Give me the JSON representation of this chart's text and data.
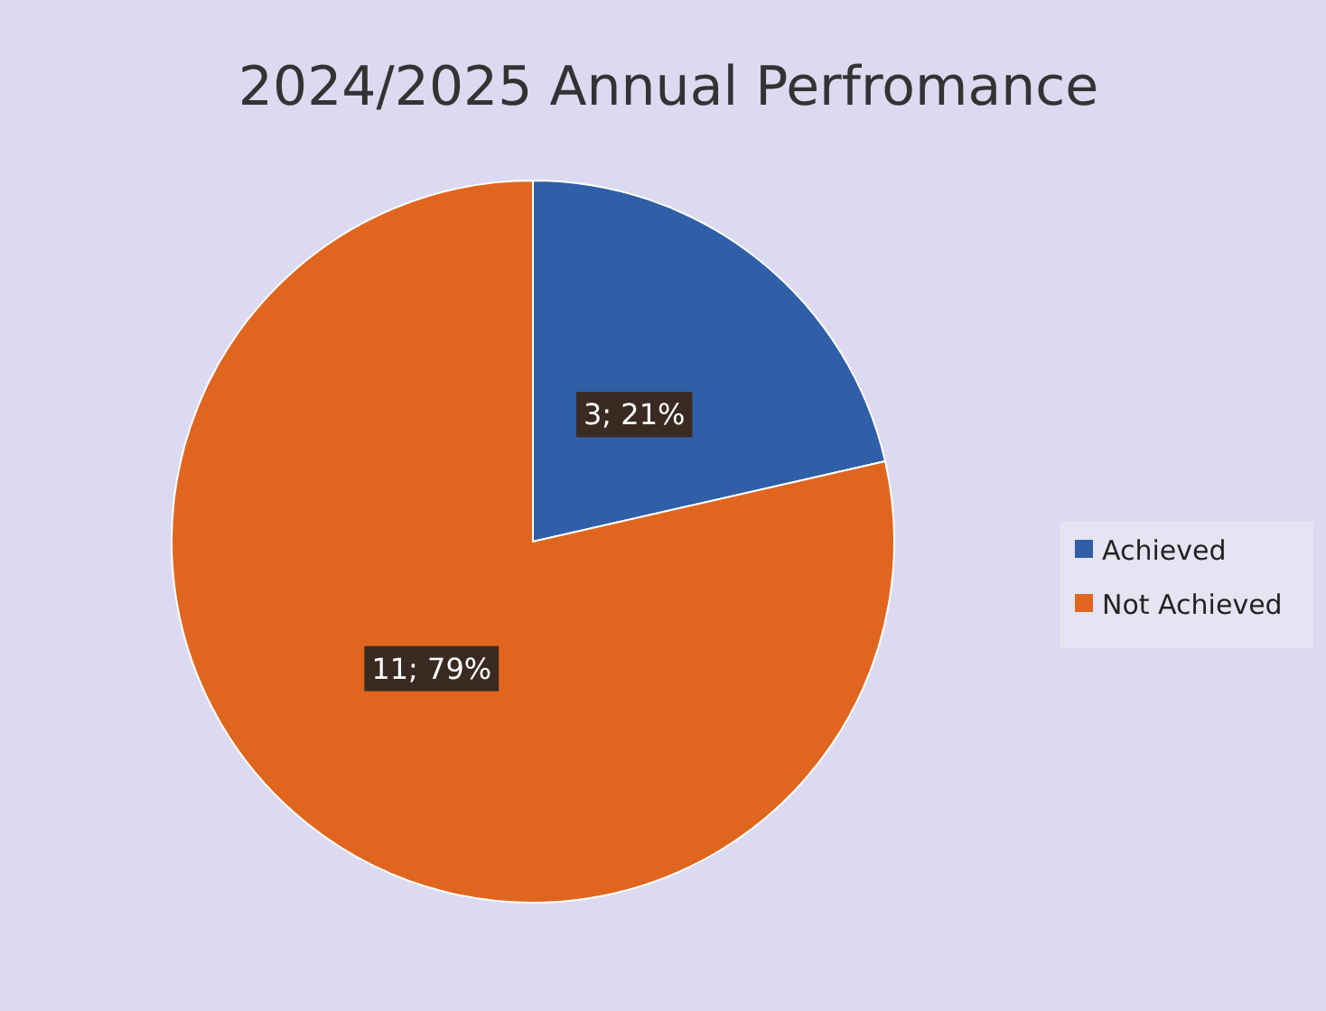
{
  "chart_data": {
    "type": "pie",
    "title": "2024/2025 Annual Perfromance",
    "categories": [
      "Achieved",
      "Not Achieved"
    ],
    "values": [
      3,
      11
    ],
    "colors": [
      "#2f5fa6",
      "#e0661f"
    ],
    "value_labels": [
      "3; 21%",
      "11; 79%"
    ],
    "legend": "right"
  }
}
